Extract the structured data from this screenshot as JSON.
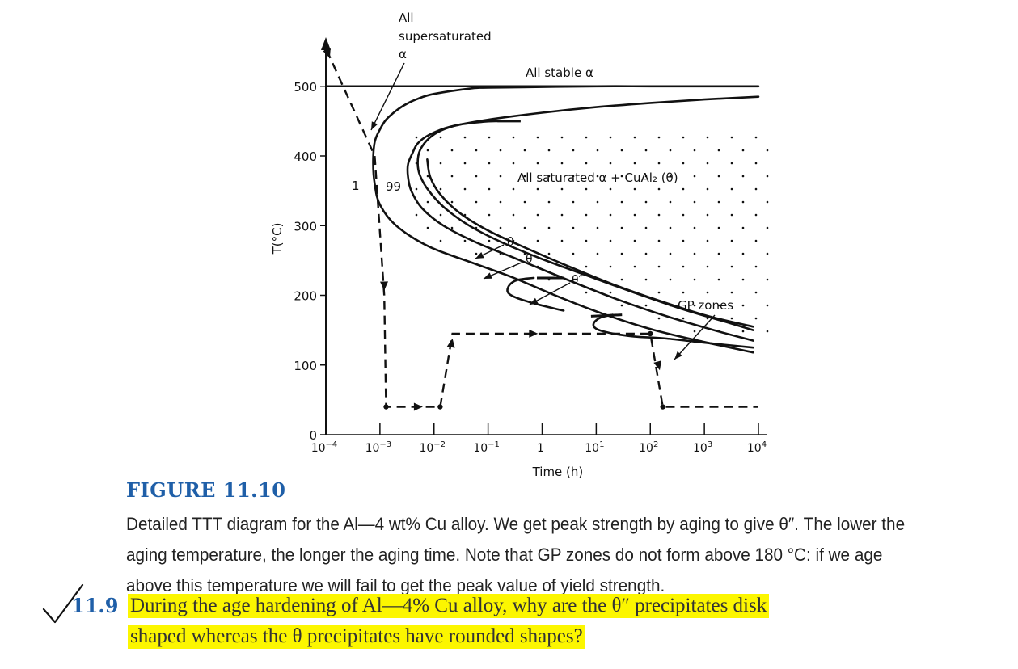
{
  "chart_data": {
    "type": "line",
    "xlabel": "Time (h)",
    "ylabel": "T(°C)",
    "x_scale": "log",
    "xlim": [
      0.0001,
      10000
    ],
    "ylim": [
      0,
      560
    ],
    "x_ticks": [
      {
        "value": 0.0001,
        "base": "10",
        "exp": "−4"
      },
      {
        "value": 0.001,
        "base": "10",
        "exp": "−3"
      },
      {
        "value": 0.01,
        "base": "10",
        "exp": "−2"
      },
      {
        "value": 0.1,
        "base": "10",
        "exp": "−1"
      },
      {
        "value": 1,
        "base": "1",
        "exp": ""
      },
      {
        "value": 10,
        "base": "10",
        "exp": "1"
      },
      {
        "value": 100,
        "base": "10",
        "exp": "2"
      },
      {
        "value": 1000,
        "base": "10",
        "exp": "3"
      },
      {
        "value": 10000,
        "base": "10",
        "exp": "4"
      }
    ],
    "y_ticks": [
      0,
      100,
      200,
      300,
      400,
      500
    ],
    "series": [
      {
        "name": "1",
        "points": [
          [
            10000,
            500
          ],
          [
            1000,
            500
          ],
          [
            100,
            500
          ],
          [
            10,
            500
          ],
          [
            1,
            499
          ],
          [
            0.1,
            498
          ],
          [
            0.05,
            497
          ],
          [
            0.01,
            489
          ],
          [
            0.005,
            482
          ],
          [
            0.003,
            474
          ],
          [
            0.002,
            465
          ],
          [
            0.0013,
            452
          ],
          [
            0.001,
            438
          ],
          [
            0.0008,
            420
          ],
          [
            0.00075,
            390
          ],
          [
            0.0008,
            360
          ],
          [
            0.001,
            330
          ],
          [
            0.002,
            300
          ],
          [
            0.008,
            270
          ],
          [
            0.05,
            247
          ],
          [
            0.3,
            225
          ],
          [
            2,
            198
          ],
          [
            15,
            172
          ],
          [
            120,
            150
          ],
          [
            1000,
            133
          ],
          [
            8000,
            118
          ]
        ]
      },
      {
        "name": "99",
        "points": [
          [
            10000,
            485
          ],
          [
            1000,
            481
          ],
          [
            100,
            476
          ],
          [
            10,
            470
          ],
          [
            1,
            462
          ],
          [
            0.1,
            452
          ],
          [
            0.02,
            442
          ],
          [
            0.008,
            430
          ],
          [
            0.005,
            418
          ],
          [
            0.004,
            404
          ],
          [
            0.0033,
            388
          ],
          [
            0.0033,
            370
          ],
          [
            0.0038,
            350
          ],
          [
            0.006,
            325
          ],
          [
            0.015,
            300
          ],
          [
            0.06,
            276
          ],
          [
            0.4,
            250
          ],
          [
            3,
            222
          ],
          [
            25,
            194
          ],
          [
            200,
            170
          ],
          [
            1500,
            150
          ],
          [
            8000,
            135
          ]
        ]
      },
      {
        "name": "θ",
        "points": [
          [
            0.15,
            450
          ],
          [
            0.08,
            449
          ],
          [
            0.03,
            445
          ],
          [
            0.014,
            437
          ],
          [
            0.008,
            425
          ],
          [
            0.0055,
            408
          ],
          [
            0.005,
            390
          ],
          [
            0.0055,
            372
          ],
          [
            0.008,
            350
          ],
          [
            0.016,
            325
          ],
          [
            0.045,
            300
          ],
          [
            0.18,
            276
          ],
          [
            1,
            252
          ],
          [
            7,
            228
          ],
          [
            50,
            204
          ],
          [
            400,
            180
          ],
          [
            3000,
            160
          ],
          [
            8000,
            150
          ]
        ]
      },
      {
        "name": "θ′",
        "points": [
          [
            0.0075,
            395
          ],
          [
            0.0085,
            370
          ],
          [
            0.013,
            345
          ],
          [
            0.03,
            318
          ],
          [
            0.1,
            293
          ],
          [
            0.5,
            268
          ],
          [
            3,
            242
          ],
          [
            20,
            216
          ],
          [
            150,
            192
          ],
          [
            1200,
            170
          ],
          [
            8000,
            155
          ]
        ]
      },
      {
        "name": "θ″",
        "points": [
          [
            0.7,
            225
          ],
          [
            0.35,
            222
          ],
          [
            0.25,
            215
          ],
          [
            0.23,
            205
          ],
          [
            0.3,
            198
          ],
          [
            0.6,
            190
          ],
          [
            1.5,
            182
          ],
          [
            2.5,
            178
          ]
        ]
      },
      {
        "name": "GP zones",
        "points": [
          [
            20,
            172
          ],
          [
            12,
            168
          ],
          [
            9,
            160
          ],
          [
            10,
            152
          ],
          [
            18,
            146
          ],
          [
            50,
            141
          ],
          [
            200,
            138
          ],
          [
            1000,
            132
          ],
          [
            8000,
            125
          ]
        ]
      }
    ],
    "quench_path": [
      [
        0.000103,
        552
      ],
      [
        0.0008,
        400
      ],
      [
        0.0012,
        200
      ],
      [
        0.0013,
        40
      ],
      [
        0.013,
        40
      ],
      [
        0.022,
        145
      ],
      [
        8,
        145
      ],
      [
        100,
        145
      ],
      [
        170,
        40
      ],
      [
        10000,
        40
      ]
    ],
    "annotations": [
      {
        "text": "All",
        "line": 1
      },
      {
        "text": "supersaturated",
        "line": 2
      },
      {
        "text": "α",
        "line": 3
      },
      {
        "text": "All stable α"
      },
      {
        "text": "All saturated α + CuAl₂ (θ)"
      },
      {
        "text": "θ"
      },
      {
        "text": "θ′"
      },
      {
        "text": "θ″"
      },
      {
        "text": "GP zones"
      },
      {
        "text": "1"
      },
      {
        "text": "99"
      }
    ],
    "grid": false,
    "legend": "none"
  },
  "figure": {
    "title": "FIGURE 11.10",
    "caption": "Detailed TTT diagram for the Al—4 wt% Cu alloy. We get peak strength by aging to give θ″. The lower the aging temperature, the longer the aging time. Note that GP zones do not form above 180 °C: if we age above this temperature we will fail to get the peak value of yield strength."
  },
  "question": {
    "number": "11.9",
    "line1": "During the age hardening of Al—4% Cu alloy, why are the θ″ precipitates disk",
    "line2": "shaped whereas the θ precipitates have rounded shapes?",
    "highlight_color": "#fcf600"
  },
  "colors": {
    "title": "#1f5fa8",
    "ink": "#111111"
  },
  "icons": {
    "check": "checkmark-icon"
  }
}
